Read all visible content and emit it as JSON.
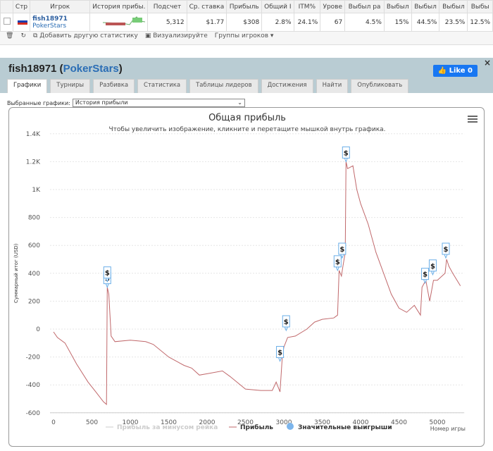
{
  "grid": {
    "headers": [
      "Стр",
      "Игрок",
      "История прибы.",
      "Подсчет",
      "Ср. ставка",
      "Прибыль",
      "Общий I",
      "ITM%",
      "Урове",
      "Выбыл ра",
      "Выбыл",
      "Выбыл",
      "Выбыл",
      "Выбы"
    ],
    "row": {
      "player": "fish18971",
      "site": "PokerStars",
      "values": [
        "5,312",
        "$1.77",
        "$308",
        "2.8%",
        "24.1%",
        "67",
        "4.5%",
        "15%",
        "44.5%",
        "23.5%",
        "12.5%"
      ]
    },
    "tools": {
      "add": "Добавить другую статистику",
      "visualize": "Визуализируйте",
      "groups": "Группы игроков ▾"
    }
  },
  "panel": {
    "player": "fish18971",
    "site": "PokerStars",
    "like": "Like 0",
    "tabs": [
      "Графики",
      "Турниры",
      "Разбивка",
      "Статистика",
      "Таблицы лидеров",
      "Достижения",
      "Найти",
      "Опубликовать"
    ],
    "select_label": "Выбранные графики:",
    "select_value": "История прибыли"
  },
  "chart_data": {
    "type": "line",
    "title": "Общая прибыль",
    "subtitle": "Чтобы увеличить изображение, кликните и перетащите мышкой внутрь графика.",
    "xlabel": "Номер игры",
    "ylabel": "Суммарный итог (USD)",
    "xlim": [
      0,
      5350
    ],
    "ylim": [
      -600,
      1400
    ],
    "xticks": [
      0,
      500,
      1000,
      1500,
      2000,
      2500,
      3000,
      3500,
      4000,
      4500,
      5000
    ],
    "yticks": [
      {
        "v": 1400,
        "l": "1.4K"
      },
      {
        "v": 1200,
        "l": "1.2K"
      },
      {
        "v": 1000,
        "l": "1K"
      },
      {
        "v": 800,
        "l": "800"
      },
      {
        "v": 600,
        "l": "600"
      },
      {
        "v": 400,
        "l": "400"
      },
      {
        "v": 200,
        "l": "200"
      },
      {
        "v": 0,
        "l": "0"
      },
      {
        "v": -200,
        "l": "-200"
      },
      {
        "v": -400,
        "l": "-400"
      },
      {
        "v": -600,
        "l": "-600"
      }
    ],
    "legend": [
      "Прибыль за минусом рейка",
      "Прибыль",
      "Значительные выигрыши"
    ],
    "series": [
      {
        "name": "Прибыль",
        "color": "#c0686b",
        "points": [
          [
            0,
            -20
          ],
          [
            50,
            -60
          ],
          [
            150,
            -100
          ],
          [
            300,
            -250
          ],
          [
            450,
            -380
          ],
          [
            550,
            -450
          ],
          [
            650,
            -520
          ],
          [
            690,
            -540
          ],
          [
            700,
            300
          ],
          [
            720,
            250
          ],
          [
            750,
            -50
          ],
          [
            800,
            -90
          ],
          [
            1000,
            -80
          ],
          [
            1200,
            -90
          ],
          [
            1300,
            -110
          ],
          [
            1500,
            -200
          ],
          [
            1700,
            -260
          ],
          [
            1800,
            -280
          ],
          [
            1900,
            -330
          ],
          [
            2000,
            -320
          ],
          [
            2200,
            -300
          ],
          [
            2300,
            -340
          ],
          [
            2500,
            -430
          ],
          [
            2700,
            -440
          ],
          [
            2850,
            -440
          ],
          [
            2900,
            -380
          ],
          [
            2950,
            -450
          ],
          [
            2980,
            -200
          ],
          [
            3000,
            -130
          ],
          [
            3050,
            -60
          ],
          [
            3150,
            -50
          ],
          [
            3300,
            0
          ],
          [
            3400,
            50
          ],
          [
            3500,
            70
          ],
          [
            3650,
            80
          ],
          [
            3700,
            100
          ],
          [
            3720,
            420
          ],
          [
            3750,
            380
          ],
          [
            3770,
            450
          ],
          [
            3800,
            550
          ],
          [
            3810,
            1200
          ],
          [
            3830,
            1150
          ],
          [
            3900,
            1170
          ],
          [
            3950,
            1000
          ],
          [
            4000,
            900
          ],
          [
            4100,
            750
          ],
          [
            4200,
            550
          ],
          [
            4300,
            400
          ],
          [
            4400,
            250
          ],
          [
            4500,
            150
          ],
          [
            4600,
            120
          ],
          [
            4700,
            170
          ],
          [
            4780,
            100
          ],
          [
            4800,
            300
          ],
          [
            4850,
            350
          ],
          [
            4900,
            200
          ],
          [
            4950,
            350
          ],
          [
            5000,
            350
          ],
          [
            5100,
            400
          ],
          [
            5120,
            500
          ],
          [
            5150,
            450
          ],
          [
            5200,
            400
          ],
          [
            5300,
            310
          ]
        ]
      }
    ],
    "big_wins": [
      [
        700,
        300
      ],
      [
        700,
        340
      ],
      [
        2950,
        -230
      ],
      [
        3030,
        -10
      ],
      [
        3700,
        420
      ],
      [
        3760,
        510
      ],
      [
        3810,
        1200
      ],
      [
        4840,
        330
      ],
      [
        4940,
        390
      ],
      [
        5110,
        510
      ]
    ]
  }
}
